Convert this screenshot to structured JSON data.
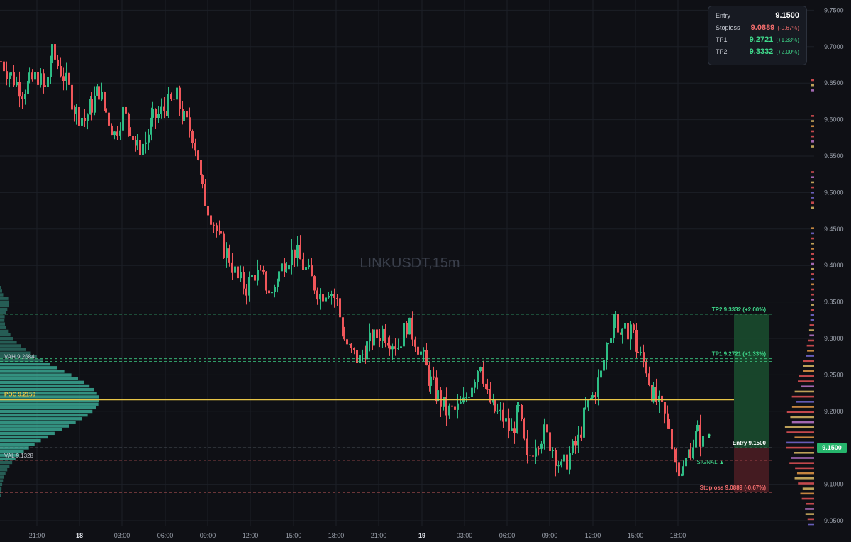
{
  "watermark": "LINKUSDT,15m",
  "info_panel": {
    "entry_label": "Entry",
    "entry_value": "9.1500",
    "stoploss_label": "Stoploss",
    "stoploss_value": "9.0889",
    "stoploss_pct": "(-0.67%)",
    "tp1_label": "TP1",
    "tp1_value": "9.2721",
    "tp1_pct": "(+1.33%)",
    "tp2_label": "TP2",
    "tp2_value": "9.3332",
    "tp2_pct": "(+2.00%)"
  },
  "colors": {
    "background": "#0f1015",
    "grid": "#1c1f27",
    "up": "#2ebd85",
    "down": "#f0565a",
    "poc": "#e8c547",
    "tp": "#3fd88b",
    "stop": "#f26d6d",
    "profile": "#3aa893"
  },
  "chart_data": {
    "type": "candlestick",
    "symbol": "LINKUSDT",
    "interval": "15m",
    "ylim": [
      9.04,
      9.76
    ],
    "y_ticks": [
      "9.7500",
      "9.7000",
      "9.6500",
      "9.6000",
      "9.5500",
      "9.5000",
      "9.4500",
      "9.4000",
      "9.3500",
      "9.3000",
      "9.2500",
      "9.2000",
      "9.1500",
      "9.1000",
      "9.0500"
    ],
    "x_ticks": [
      "21:00",
      "18",
      "03:00",
      "06:00",
      "09:00",
      "12:00",
      "15:00",
      "18:00",
      "21:00",
      "19",
      "03:00",
      "06:00",
      "09:00",
      "12:00",
      "15:00",
      "18:00"
    ],
    "current_price": "9.1500",
    "levels": [
      {
        "label": "TP2 9.3332 (+2.00%)",
        "value": 9.3332,
        "kind": "tp"
      },
      {
        "label": "TP1 9.2721 (+1.33%)",
        "value": 9.2721,
        "kind": "tp"
      },
      {
        "label": "Entry 9.1500",
        "value": 9.15,
        "kind": "entry"
      },
      {
        "label": "Stoploss 9.0889 (-0.67%)",
        "value": 9.0889,
        "kind": "stop"
      }
    ],
    "volume_profile": {
      "poc_label": "POC",
      "poc": 9.2159,
      "poc_text": "9.2159",
      "vah_label": "VAH",
      "vah": 9.2684,
      "vah_text": "9.2684",
      "val_label": "VAL",
      "val": 9.1328,
      "val_text": "9.1328"
    },
    "signal_label": "SIGNAL ▲",
    "price_path": [
      [
        0,
        9.68
      ],
      [
        14,
        9.66
      ],
      [
        30,
        9.64
      ],
      [
        40,
        9.65
      ],
      [
        52,
        9.66
      ],
      [
        62,
        9.64
      ],
      [
        72,
        9.69
      ],
      [
        88,
        9.66
      ],
      [
        96,
        9.64
      ],
      [
        106,
        9.61
      ],
      [
        118,
        9.6
      ],
      [
        128,
        9.62
      ],
      [
        138,
        9.64
      ],
      [
        148,
        9.61
      ],
      [
        160,
        9.58
      ],
      [
        172,
        9.61
      ],
      [
        182,
        9.59
      ],
      [
        192,
        9.56
      ],
      [
        204,
        9.57
      ],
      [
        214,
        9.6
      ],
      [
        226,
        9.61
      ],
      [
        236,
        9.62
      ],
      [
        248,
        9.63
      ],
      [
        258,
        9.6
      ],
      [
        270,
        9.58
      ],
      [
        278,
        9.55
      ],
      [
        284,
        9.5
      ],
      [
        292,
        9.48
      ],
      [
        300,
        9.46
      ],
      [
        310,
        9.43
      ],
      [
        322,
        9.41
      ],
      [
        334,
        9.38
      ],
      [
        346,
        9.37
      ],
      [
        358,
        9.39
      ],
      [
        370,
        9.38
      ],
      [
        382,
        9.36
      ],
      [
        392,
        9.39
      ],
      [
        402,
        9.41
      ],
      [
        414,
        9.42
      ],
      [
        426,
        9.4
      ],
      [
        438,
        9.38
      ],
      [
        450,
        9.36
      ],
      [
        462,
        9.37
      ],
      [
        474,
        9.35
      ],
      [
        484,
        9.3
      ],
      [
        494,
        9.28
      ],
      [
        506,
        9.27
      ],
      [
        516,
        9.29
      ],
      [
        526,
        9.3
      ],
      [
        538,
        9.31
      ],
      [
        548,
        9.3
      ],
      [
        560,
        9.29
      ],
      [
        572,
        9.32
      ],
      [
        584,
        9.3
      ],
      [
        596,
        9.27
      ],
      [
        606,
        9.24
      ],
      [
        616,
        9.22
      ],
      [
        628,
        9.2
      ],
      [
        640,
        9.2
      ],
      [
        652,
        9.21
      ],
      [
        664,
        9.24
      ],
      [
        676,
        9.27
      ],
      [
        686,
        9.22
      ],
      [
        696,
        9.2
      ],
      [
        708,
        9.19
      ],
      [
        720,
        9.17
      ],
      [
        730,
        9.2
      ],
      [
        742,
        9.13
      ],
      [
        754,
        9.16
      ],
      [
        766,
        9.17
      ],
      [
        778,
        9.15
      ],
      [
        790,
        9.12
      ],
      [
        802,
        9.14
      ],
      [
        814,
        9.16
      ],
      [
        824,
        9.2
      ],
      [
        834,
        9.22
      ],
      [
        846,
        9.25
      ],
      [
        856,
        9.3
      ],
      [
        866,
        9.33
      ],
      [
        876,
        9.3
      ],
      [
        888,
        9.32
      ],
      [
        898,
        9.28
      ],
      [
        910,
        9.26
      ],
      [
        920,
        9.22
      ],
      [
        932,
        9.2
      ],
      [
        942,
        9.18
      ],
      [
        952,
        9.13
      ],
      [
        962,
        9.12
      ],
      [
        972,
        9.15
      ],
      [
        982,
        9.17
      ],
      [
        994,
        9.15
      ]
    ]
  }
}
